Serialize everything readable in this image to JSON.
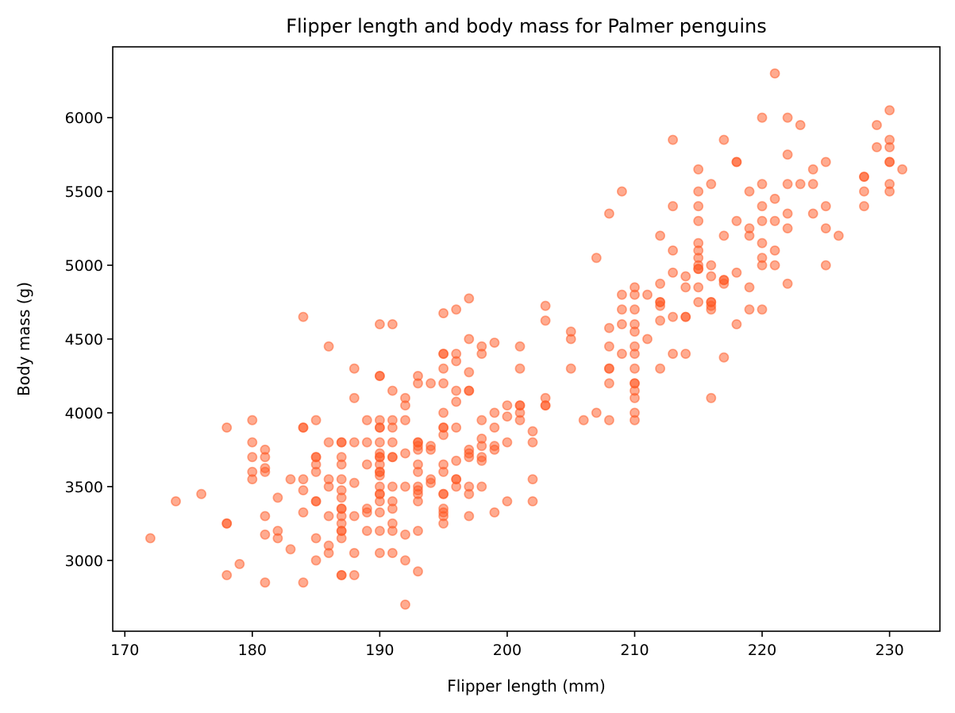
{
  "chart_data": {
    "type": "scatter",
    "title": "Flipper length and body mass for Palmer penguins",
    "xlabel": "Flipper length (mm)",
    "ylabel": "Body mass (g)",
    "xlim": [
      169.05,
      233.95
    ],
    "ylim": [
      2520,
      6480
    ],
    "xticks": [
      170,
      180,
      190,
      200,
      210,
      220,
      230
    ],
    "yticks": [
      3000,
      3500,
      4000,
      4500,
      5000,
      5500,
      6000
    ],
    "grid": false,
    "marker_color": "#ff5722",
    "marker_alpha": 0.5,
    "points": [
      [
        172,
        3150
      ],
      [
        174,
        3400
      ],
      [
        176,
        3450
      ],
      [
        178,
        3250
      ],
      [
        178,
        3250
      ],
      [
        178,
        3900
      ],
      [
        178,
        2900
      ],
      [
        179,
        2975
      ],
      [
        180,
        3950
      ],
      [
        180,
        3800
      ],
      [
        180,
        3700
      ],
      [
        180,
        3600
      ],
      [
        180,
        3550
      ],
      [
        181,
        3750
      ],
      [
        181,
        3700
      ],
      [
        181,
        3625
      ],
      [
        181,
        3600
      ],
      [
        181,
        3300
      ],
      [
        181,
        3175
      ],
      [
        181,
        2850
      ],
      [
        182,
        3425
      ],
      [
        182,
        3200
      ],
      [
        182,
        3150
      ],
      [
        183,
        3550
      ],
      [
        183,
        3075
      ],
      [
        184,
        4650
      ],
      [
        184,
        3900
      ],
      [
        184,
        3900
      ],
      [
        184,
        3550
      ],
      [
        184,
        3475
      ],
      [
        184,
        3325
      ],
      [
        184,
        2850
      ],
      [
        185,
        3950
      ],
      [
        185,
        3700
      ],
      [
        185,
        3700
      ],
      [
        185,
        3650
      ],
      [
        185,
        3600
      ],
      [
        185,
        3400
      ],
      [
        185,
        3400
      ],
      [
        185,
        3150
      ],
      [
        185,
        3000
      ],
      [
        186,
        4450
      ],
      [
        186,
        3800
      ],
      [
        186,
        3550
      ],
      [
        186,
        3500
      ],
      [
        186,
        3300
      ],
      [
        186,
        3100
      ],
      [
        186,
        3050
      ],
      [
        187,
        3800
      ],
      [
        187,
        3800
      ],
      [
        187,
        3700
      ],
      [
        187,
        3650
      ],
      [
        187,
        3550
      ],
      [
        187,
        3475
      ],
      [
        187,
        3425
      ],
      [
        187,
        3350
      ],
      [
        187,
        3350
      ],
      [
        187,
        3300
      ],
      [
        187,
        3250
      ],
      [
        187,
        3200
      ],
      [
        187,
        3200
      ],
      [
        187,
        3150
      ],
      [
        187,
        2900
      ],
      [
        187,
        2900
      ],
      [
        188,
        4300
      ],
      [
        188,
        4100
      ],
      [
        188,
        3800
      ],
      [
        188,
        3525
      ],
      [
        188,
        3300
      ],
      [
        188,
        3050
      ],
      [
        188,
        2900
      ],
      [
        189,
        3950
      ],
      [
        189,
        3800
      ],
      [
        189,
        3650
      ],
      [
        189,
        3350
      ],
      [
        189,
        3325
      ],
      [
        189,
        3200
      ],
      [
        190,
        4600
      ],
      [
        190,
        4250
      ],
      [
        190,
        4250
      ],
      [
        190,
        3950
      ],
      [
        190,
        3900
      ],
      [
        190,
        3900
      ],
      [
        190,
        3800
      ],
      [
        190,
        3725
      ],
      [
        190,
        3700
      ],
      [
        190,
        3700
      ],
      [
        190,
        3650
      ],
      [
        190,
        3600
      ],
      [
        190,
        3600
      ],
      [
        190,
        3575
      ],
      [
        190,
        3500
      ],
      [
        190,
        3450
      ],
      [
        190,
        3450
      ],
      [
        190,
        3400
      ],
      [
        190,
        3325
      ],
      [
        190,
        3200
      ],
      [
        190,
        3050
      ],
      [
        191,
        4600
      ],
      [
        191,
        4150
      ],
      [
        191,
        3950
      ],
      [
        191,
        3900
      ],
      [
        191,
        3800
      ],
      [
        191,
        3700
      ],
      [
        191,
        3700
      ],
      [
        191,
        3500
      ],
      [
        191,
        3400
      ],
      [
        191,
        3350
      ],
      [
        191,
        3250
      ],
      [
        191,
        3200
      ],
      [
        191,
        3050
      ],
      [
        192,
        4100
      ],
      [
        192,
        4050
      ],
      [
        192,
        3950
      ],
      [
        192,
        3725
      ],
      [
        192,
        3500
      ],
      [
        192,
        3175
      ],
      [
        192,
        3000
      ],
      [
        192,
        2700
      ],
      [
        193,
        4250
      ],
      [
        193,
        4200
      ],
      [
        193,
        3800
      ],
      [
        193,
        3800
      ],
      [
        193,
        3775
      ],
      [
        193,
        3750
      ],
      [
        193,
        3650
      ],
      [
        193,
        3600
      ],
      [
        193,
        3500
      ],
      [
        193,
        3475
      ],
      [
        193,
        3450
      ],
      [
        193,
        3400
      ],
      [
        193,
        3200
      ],
      [
        193,
        2925
      ],
      [
        194,
        4200
      ],
      [
        194,
        3775
      ],
      [
        194,
        3750
      ],
      [
        194,
        3550
      ],
      [
        194,
        3525
      ],
      [
        195,
        4675
      ],
      [
        195,
        4400
      ],
      [
        195,
        4400
      ],
      [
        195,
        4300
      ],
      [
        195,
        4200
      ],
      [
        195,
        4000
      ],
      [
        195,
        3900
      ],
      [
        195,
        3900
      ],
      [
        195,
        3850
      ],
      [
        195,
        3650
      ],
      [
        195,
        3600
      ],
      [
        195,
        3450
      ],
      [
        195,
        3450
      ],
      [
        195,
        3350
      ],
      [
        195,
        3325
      ],
      [
        195,
        3300
      ],
      [
        195,
        3250
      ],
      [
        196,
        4700
      ],
      [
        196,
        4400
      ],
      [
        196,
        4350
      ],
      [
        196,
        4150
      ],
      [
        196,
        4075
      ],
      [
        196,
        3900
      ],
      [
        196,
        3675
      ],
      [
        196,
        3550
      ],
      [
        196,
        3550
      ],
      [
        196,
        3500
      ],
      [
        197,
        4775
      ],
      [
        197,
        4500
      ],
      [
        197,
        4275
      ],
      [
        197,
        4150
      ],
      [
        197,
        4150
      ],
      [
        197,
        3750
      ],
      [
        197,
        3725
      ],
      [
        197,
        3700
      ],
      [
        197,
        3500
      ],
      [
        197,
        3450
      ],
      [
        197,
        3300
      ],
      [
        198,
        4450
      ],
      [
        198,
        4400
      ],
      [
        198,
        3950
      ],
      [
        198,
        3825
      ],
      [
        198,
        3775
      ],
      [
        198,
        3700
      ],
      [
        198,
        3675
      ],
      [
        198,
        3500
      ],
      [
        199,
        4475
      ],
      [
        199,
        4000
      ],
      [
        199,
        3900
      ],
      [
        199,
        3775
      ],
      [
        199,
        3750
      ],
      [
        199,
        3325
      ],
      [
        200,
        4050
      ],
      [
        200,
        3975
      ],
      [
        200,
        3800
      ],
      [
        200,
        3400
      ],
      [
        201,
        4450
      ],
      [
        201,
        4300
      ],
      [
        201,
        4050
      ],
      [
        201,
        4050
      ],
      [
        201,
        4000
      ],
      [
        201,
        3950
      ],
      [
        202,
        3875
      ],
      [
        202,
        3800
      ],
      [
        202,
        3550
      ],
      [
        202,
        3400
      ],
      [
        203,
        4725
      ],
      [
        203,
        4625
      ],
      [
        203,
        4100
      ],
      [
        203,
        4050
      ],
      [
        203,
        4050
      ],
      [
        205,
        4550
      ],
      [
        205,
        4500
      ],
      [
        205,
        4300
      ],
      [
        206,
        3950
      ],
      [
        207,
        5050
      ],
      [
        207,
        4000
      ],
      [
        208,
        5350
      ],
      [
        208,
        4575
      ],
      [
        208,
        4450
      ],
      [
        208,
        4300
      ],
      [
        208,
        4300
      ],
      [
        208,
        4200
      ],
      [
        208,
        3950
      ],
      [
        209,
        5500
      ],
      [
        209,
        4800
      ],
      [
        209,
        4700
      ],
      [
        209,
        4600
      ],
      [
        209,
        4400
      ],
      [
        210,
        4850
      ],
      [
        210,
        4800
      ],
      [
        210,
        4700
      ],
      [
        210,
        4600
      ],
      [
        210,
        4550
      ],
      [
        210,
        4450
      ],
      [
        210,
        4400
      ],
      [
        210,
        4300
      ],
      [
        210,
        4200
      ],
      [
        210,
        4200
      ],
      [
        210,
        4150
      ],
      [
        210,
        4100
      ],
      [
        210,
        4000
      ],
      [
        210,
        3950
      ],
      [
        211,
        4800
      ],
      [
        211,
        4500
      ],
      [
        212,
        5200
      ],
      [
        212,
        4875
      ],
      [
        212,
        4750
      ],
      [
        212,
        4750
      ],
      [
        212,
        4725
      ],
      [
        212,
        4625
      ],
      [
        212,
        4300
      ],
      [
        213,
        5850
      ],
      [
        213,
        5400
      ],
      [
        213,
        5100
      ],
      [
        213,
        4950
      ],
      [
        213,
        4650
      ],
      [
        213,
        4400
      ],
      [
        214,
        4925
      ],
      [
        214,
        4850
      ],
      [
        214,
        4650
      ],
      [
        214,
        4650
      ],
      [
        214,
        4400
      ],
      [
        215,
        5650
      ],
      [
        215,
        5500
      ],
      [
        215,
        5400
      ],
      [
        215,
        5300
      ],
      [
        215,
        5150
      ],
      [
        215,
        5100
      ],
      [
        215,
        5050
      ],
      [
        215,
        5000
      ],
      [
        215,
        4975
      ],
      [
        215,
        4975
      ],
      [
        215,
        4850
      ],
      [
        215,
        4750
      ],
      [
        216,
        5550
      ],
      [
        216,
        5000
      ],
      [
        216,
        4925
      ],
      [
        216,
        4750
      ],
      [
        216,
        4750
      ],
      [
        216,
        4725
      ],
      [
        216,
        4700
      ],
      [
        216,
        4100
      ],
      [
        217,
        5850
      ],
      [
        217,
        5200
      ],
      [
        217,
        4900
      ],
      [
        217,
        4900
      ],
      [
        217,
        4875
      ],
      [
        217,
        4375
      ],
      [
        218,
        5700
      ],
      [
        218,
        5700
      ],
      [
        218,
        5300
      ],
      [
        218,
        4950
      ],
      [
        218,
        4600
      ],
      [
        219,
        5500
      ],
      [
        219,
        5250
      ],
      [
        219,
        5200
      ],
      [
        219,
        4850
      ],
      [
        219,
        4700
      ],
      [
        220,
        6000
      ],
      [
        220,
        5550
      ],
      [
        220,
        5400
      ],
      [
        220,
        5300
      ],
      [
        220,
        5150
      ],
      [
        220,
        5050
      ],
      [
        220,
        5000
      ],
      [
        220,
        4700
      ],
      [
        221,
        6300
      ],
      [
        221,
        5450
      ],
      [
        221,
        5300
      ],
      [
        221,
        5100
      ],
      [
        221,
        5000
      ],
      [
        222,
        6000
      ],
      [
        222,
        5750
      ],
      [
        222,
        5550
      ],
      [
        222,
        5350
      ],
      [
        222,
        5250
      ],
      [
        222,
        4875
      ],
      [
        223,
        5950
      ],
      [
        223,
        5550
      ],
      [
        224,
        5650
      ],
      [
        224,
        5550
      ],
      [
        224,
        5350
      ],
      [
        225,
        5700
      ],
      [
        225,
        5400
      ],
      [
        225,
        5250
      ],
      [
        225,
        5000
      ],
      [
        226,
        5200
      ],
      [
        228,
        5600
      ],
      [
        228,
        5600
      ],
      [
        228,
        5500
      ],
      [
        228,
        5400
      ],
      [
        229,
        5950
      ],
      [
        229,
        5800
      ],
      [
        230,
        6050
      ],
      [
        230,
        5850
      ],
      [
        230,
        5800
      ],
      [
        230,
        5700
      ],
      [
        230,
        5700
      ],
      [
        230,
        5550
      ],
      [
        230,
        5500
      ],
      [
        231,
        5650
      ]
    ]
  }
}
